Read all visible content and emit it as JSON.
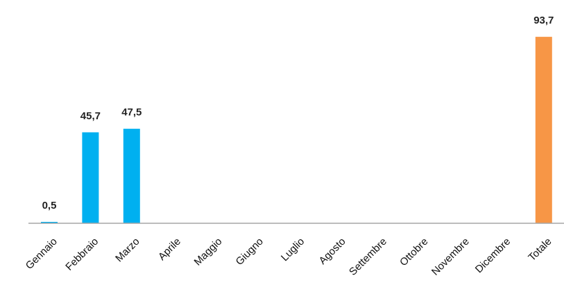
{
  "chart_data": {
    "type": "bar",
    "title": "",
    "xlabel": "",
    "ylabel": "",
    "categories": [
      "Gennaio",
      "Febbraio",
      "Marzo",
      "Aprile",
      "Maggio",
      "Giugno",
      "Luglio",
      "Agosto",
      "Settembre",
      "Ottobre",
      "Novembre",
      "Dicembre",
      "Totale"
    ],
    "values": [
      0.5,
      45.7,
      47.5,
      null,
      null,
      null,
      null,
      null,
      null,
      null,
      null,
      null,
      93.7
    ],
    "value_labels": [
      "0,5",
      "45,7",
      "47,5",
      "",
      "",
      "",
      "",
      "",
      "",
      "",
      "",
      "",
      "93,7"
    ],
    "ylim": [
      0,
      100
    ],
    "grid": false,
    "legend": "none",
    "colors": {
      "monthly": "#00b0f0",
      "total": "#f79646",
      "baseline": "#a6a6a6"
    }
  }
}
